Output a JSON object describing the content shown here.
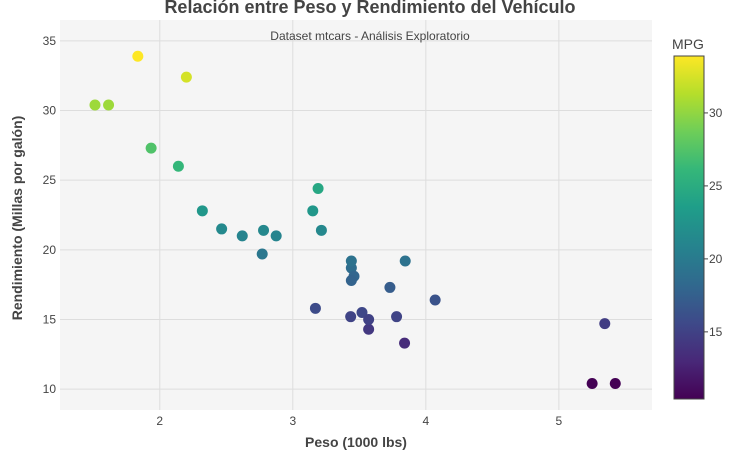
{
  "chart_data": {
    "type": "scatter",
    "title": "Relación entre Peso y Rendimiento del Vehículo",
    "subtitle": "Dataset mtcars - Análisis Exploratorio",
    "xlabel": "Peso (1000 lbs)",
    "ylabel": "Rendimiento (Millas por galón)",
    "xlim": [
      1.25,
      5.7
    ],
    "ylim": [
      8.5,
      36.5
    ],
    "xticks": [
      2,
      3,
      4,
      5
    ],
    "yticks": [
      10,
      15,
      20,
      25,
      30,
      35
    ],
    "grid": true,
    "colorbar": {
      "title": "MPG",
      "colorscale": "viridis",
      "range": [
        10.4,
        33.9
      ],
      "ticks": [
        15,
        20,
        25,
        30
      ]
    },
    "points": [
      {
        "x": 2.62,
        "y": 21.0
      },
      {
        "x": 2.875,
        "y": 21.0
      },
      {
        "x": 2.32,
        "y": 22.8
      },
      {
        "x": 3.215,
        "y": 21.4
      },
      {
        "x": 3.44,
        "y": 18.7
      },
      {
        "x": 3.46,
        "y": 18.1
      },
      {
        "x": 3.57,
        "y": 14.3
      },
      {
        "x": 3.19,
        "y": 24.4
      },
      {
        "x": 3.15,
        "y": 22.8
      },
      {
        "x": 3.44,
        "y": 19.2
      },
      {
        "x": 3.44,
        "y": 17.8
      },
      {
        "x": 4.07,
        "y": 16.4
      },
      {
        "x": 3.73,
        "y": 17.3
      },
      {
        "x": 3.78,
        "y": 15.2
      },
      {
        "x": 5.25,
        "y": 10.4
      },
      {
        "x": 5.424,
        "y": 10.4
      },
      {
        "x": 5.345,
        "y": 14.7
      },
      {
        "x": 2.2,
        "y": 32.4
      },
      {
        "x": 1.615,
        "y": 30.4
      },
      {
        "x": 1.835,
        "y": 33.9
      },
      {
        "x": 2.465,
        "y": 21.5
      },
      {
        "x": 3.52,
        "y": 15.5
      },
      {
        "x": 3.435,
        "y": 15.2
      },
      {
        "x": 3.84,
        "y": 13.3
      },
      {
        "x": 3.845,
        "y": 19.2
      },
      {
        "x": 1.935,
        "y": 27.3
      },
      {
        "x": 2.14,
        "y": 26.0
      },
      {
        "x": 1.513,
        "y": 30.4
      },
      {
        "x": 3.17,
        "y": 15.8
      },
      {
        "x": 2.77,
        "y": 19.7
      },
      {
        "x": 3.57,
        "y": 15.0
      },
      {
        "x": 2.78,
        "y": 21.4
      }
    ]
  }
}
